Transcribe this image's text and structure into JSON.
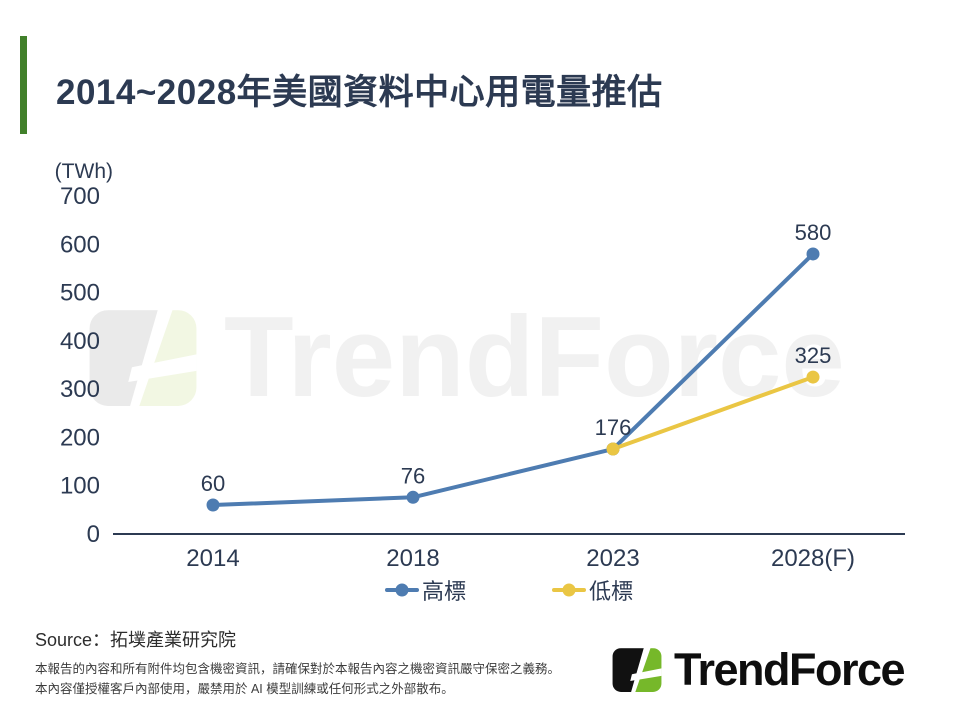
{
  "slide": {
    "title": "2014~2028年美國資料中心用電量推估"
  },
  "chart_data": {
    "type": "line",
    "title": "2014~2028年美國資料中心用電量推估",
    "unit_label": "(TWh)",
    "categories": [
      "2014",
      "2018",
      "2023",
      "2028(F)"
    ],
    "series": [
      {
        "id": "high",
        "name": "高標",
        "color": "#4e7cb1",
        "values": [
          60,
          76,
          176,
          580
        ],
        "point_labels": [
          "60",
          "76",
          "176",
          "580"
        ]
      },
      {
        "id": "low",
        "name": "低標",
        "color": "#eac644",
        "values": [
          null,
          null,
          176,
          325
        ],
        "point_labels": [
          "",
          "",
          "",
          "325"
        ]
      }
    ],
    "ylim": [
      0,
      700
    ],
    "ytick_interval": 100,
    "grid": false,
    "legend_position": "bottom"
  },
  "watermark": {
    "text": "TrendForce"
  },
  "footer": {
    "source": "Source：拓墣產業研究院",
    "disclaimer_line1": "本報告的內容和所有附件均包含機密資訊，請確保對於本報告內容之機密資訊嚴守保密之義務。",
    "disclaimer_line2": "本內容僅授權客戶內部使用，嚴禁用於 AI 模型訓練或任何形式之外部散布。",
    "logo_text": "TrendForce"
  },
  "colors": {
    "accent_bar": "#41802a",
    "title_text": "#2c3a52",
    "chart_text": "#2c3a52",
    "axis_line": "#2c3a52",
    "high_series": "#4e7cb1",
    "low_series": "#eac644",
    "logo_black": "#111111",
    "logo_green": "#76b82a",
    "logo_text": "#0e0e0e",
    "watermark_gray": "#eaeaea",
    "watermark_green": "#f2f7e3",
    "watermark_text": "#f1f1f1",
    "source_text": "#2d2d2d",
    "disclaimer_text": "#3c3c3c"
  }
}
